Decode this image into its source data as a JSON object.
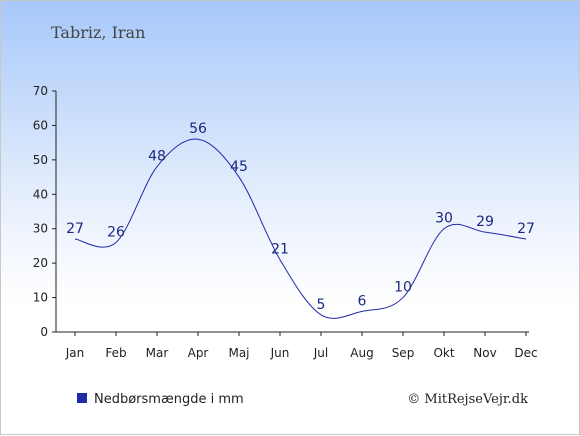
{
  "chart_data": {
    "type": "line",
    "title": "Tabriz, Iran",
    "categories": [
      "Jan",
      "Feb",
      "Mar",
      "Apr",
      "Maj",
      "Jun",
      "Jul",
      "Aug",
      "Sep",
      "Okt",
      "Nov",
      "Dec"
    ],
    "series": [
      {
        "name": "Nedbørsmængde i mm",
        "values": [
          27,
          26,
          48,
          56,
          45,
          21,
          5,
          6,
          10,
          30,
          29,
          27
        ],
        "color": "#1f2aa8"
      }
    ],
    "yticks": [
      0,
      10,
      20,
      30,
      40,
      50,
      60,
      70
    ],
    "ylim": [
      0,
      70
    ],
    "grid": false,
    "legend": "bottom-left",
    "legend_marker_color": "#1f2aa8"
  },
  "credit": "© MitRejseVejr.dk"
}
